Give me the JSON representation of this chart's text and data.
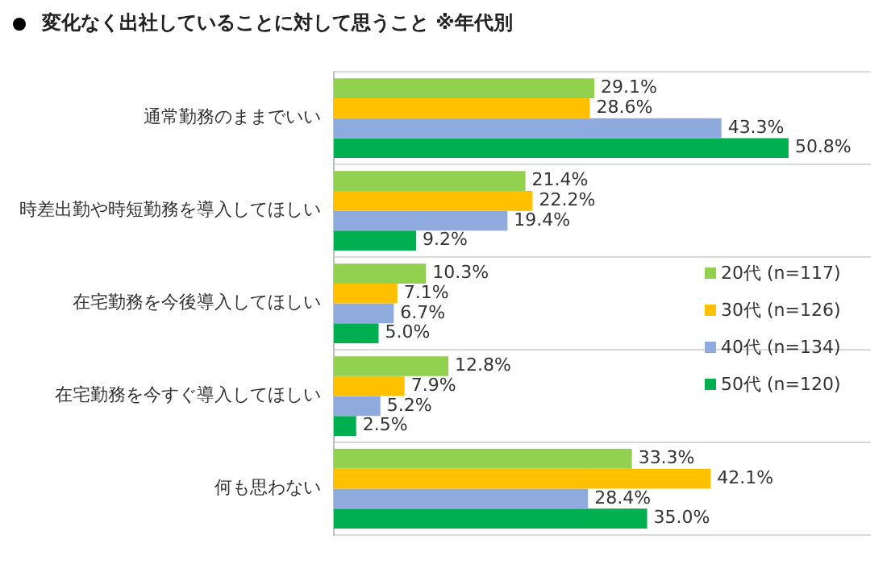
{
  "chart_data": {
    "type": "bar",
    "orientation": "horizontal",
    "title": "変化なく出社していることに対して思うこと ※年代別",
    "categories": [
      "通常勤務のままでいい",
      "時差出勤や時短勤務を導入してほしい",
      "在宅勤務を今後導入してほしい",
      "在宅勤務を今すぐ導入してほしい",
      "何も思わない"
    ],
    "series": [
      {
        "name": "20代 (n=117)",
        "color": "#92d050",
        "values": [
          29.1,
          21.4,
          10.3,
          12.8,
          33.3
        ],
        "value_labels": [
          "29.1%",
          "21.4%",
          "10.3%",
          "12.8%",
          "33.3%"
        ]
      },
      {
        "name": "30代 (n=126)",
        "color": "#ffc000",
        "values": [
          28.6,
          22.2,
          7.1,
          7.9,
          42.1
        ],
        "value_labels": [
          "28.6%",
          "22.2%",
          "7.1%",
          "7.9%",
          "42.1%"
        ]
      },
      {
        "name": "40代 (n=134)",
        "color": "#8faadc",
        "values": [
          43.3,
          19.4,
          6.7,
          5.2,
          28.4
        ],
        "value_labels": [
          "43.3%",
          "19.4%",
          "6.7%",
          "5.2%",
          "28.4%"
        ]
      },
      {
        "name": "50代 (n=120)",
        "color": "#00b050",
        "values": [
          50.8,
          9.2,
          5.0,
          2.5,
          35.0
        ],
        "value_labels": [
          "50.8%",
          "9.2%",
          "5.0%",
          "2.5%",
          "35.0%"
        ]
      }
    ],
    "grid": "y",
    "legend": "right",
    "tick_labels": "y"
  }
}
